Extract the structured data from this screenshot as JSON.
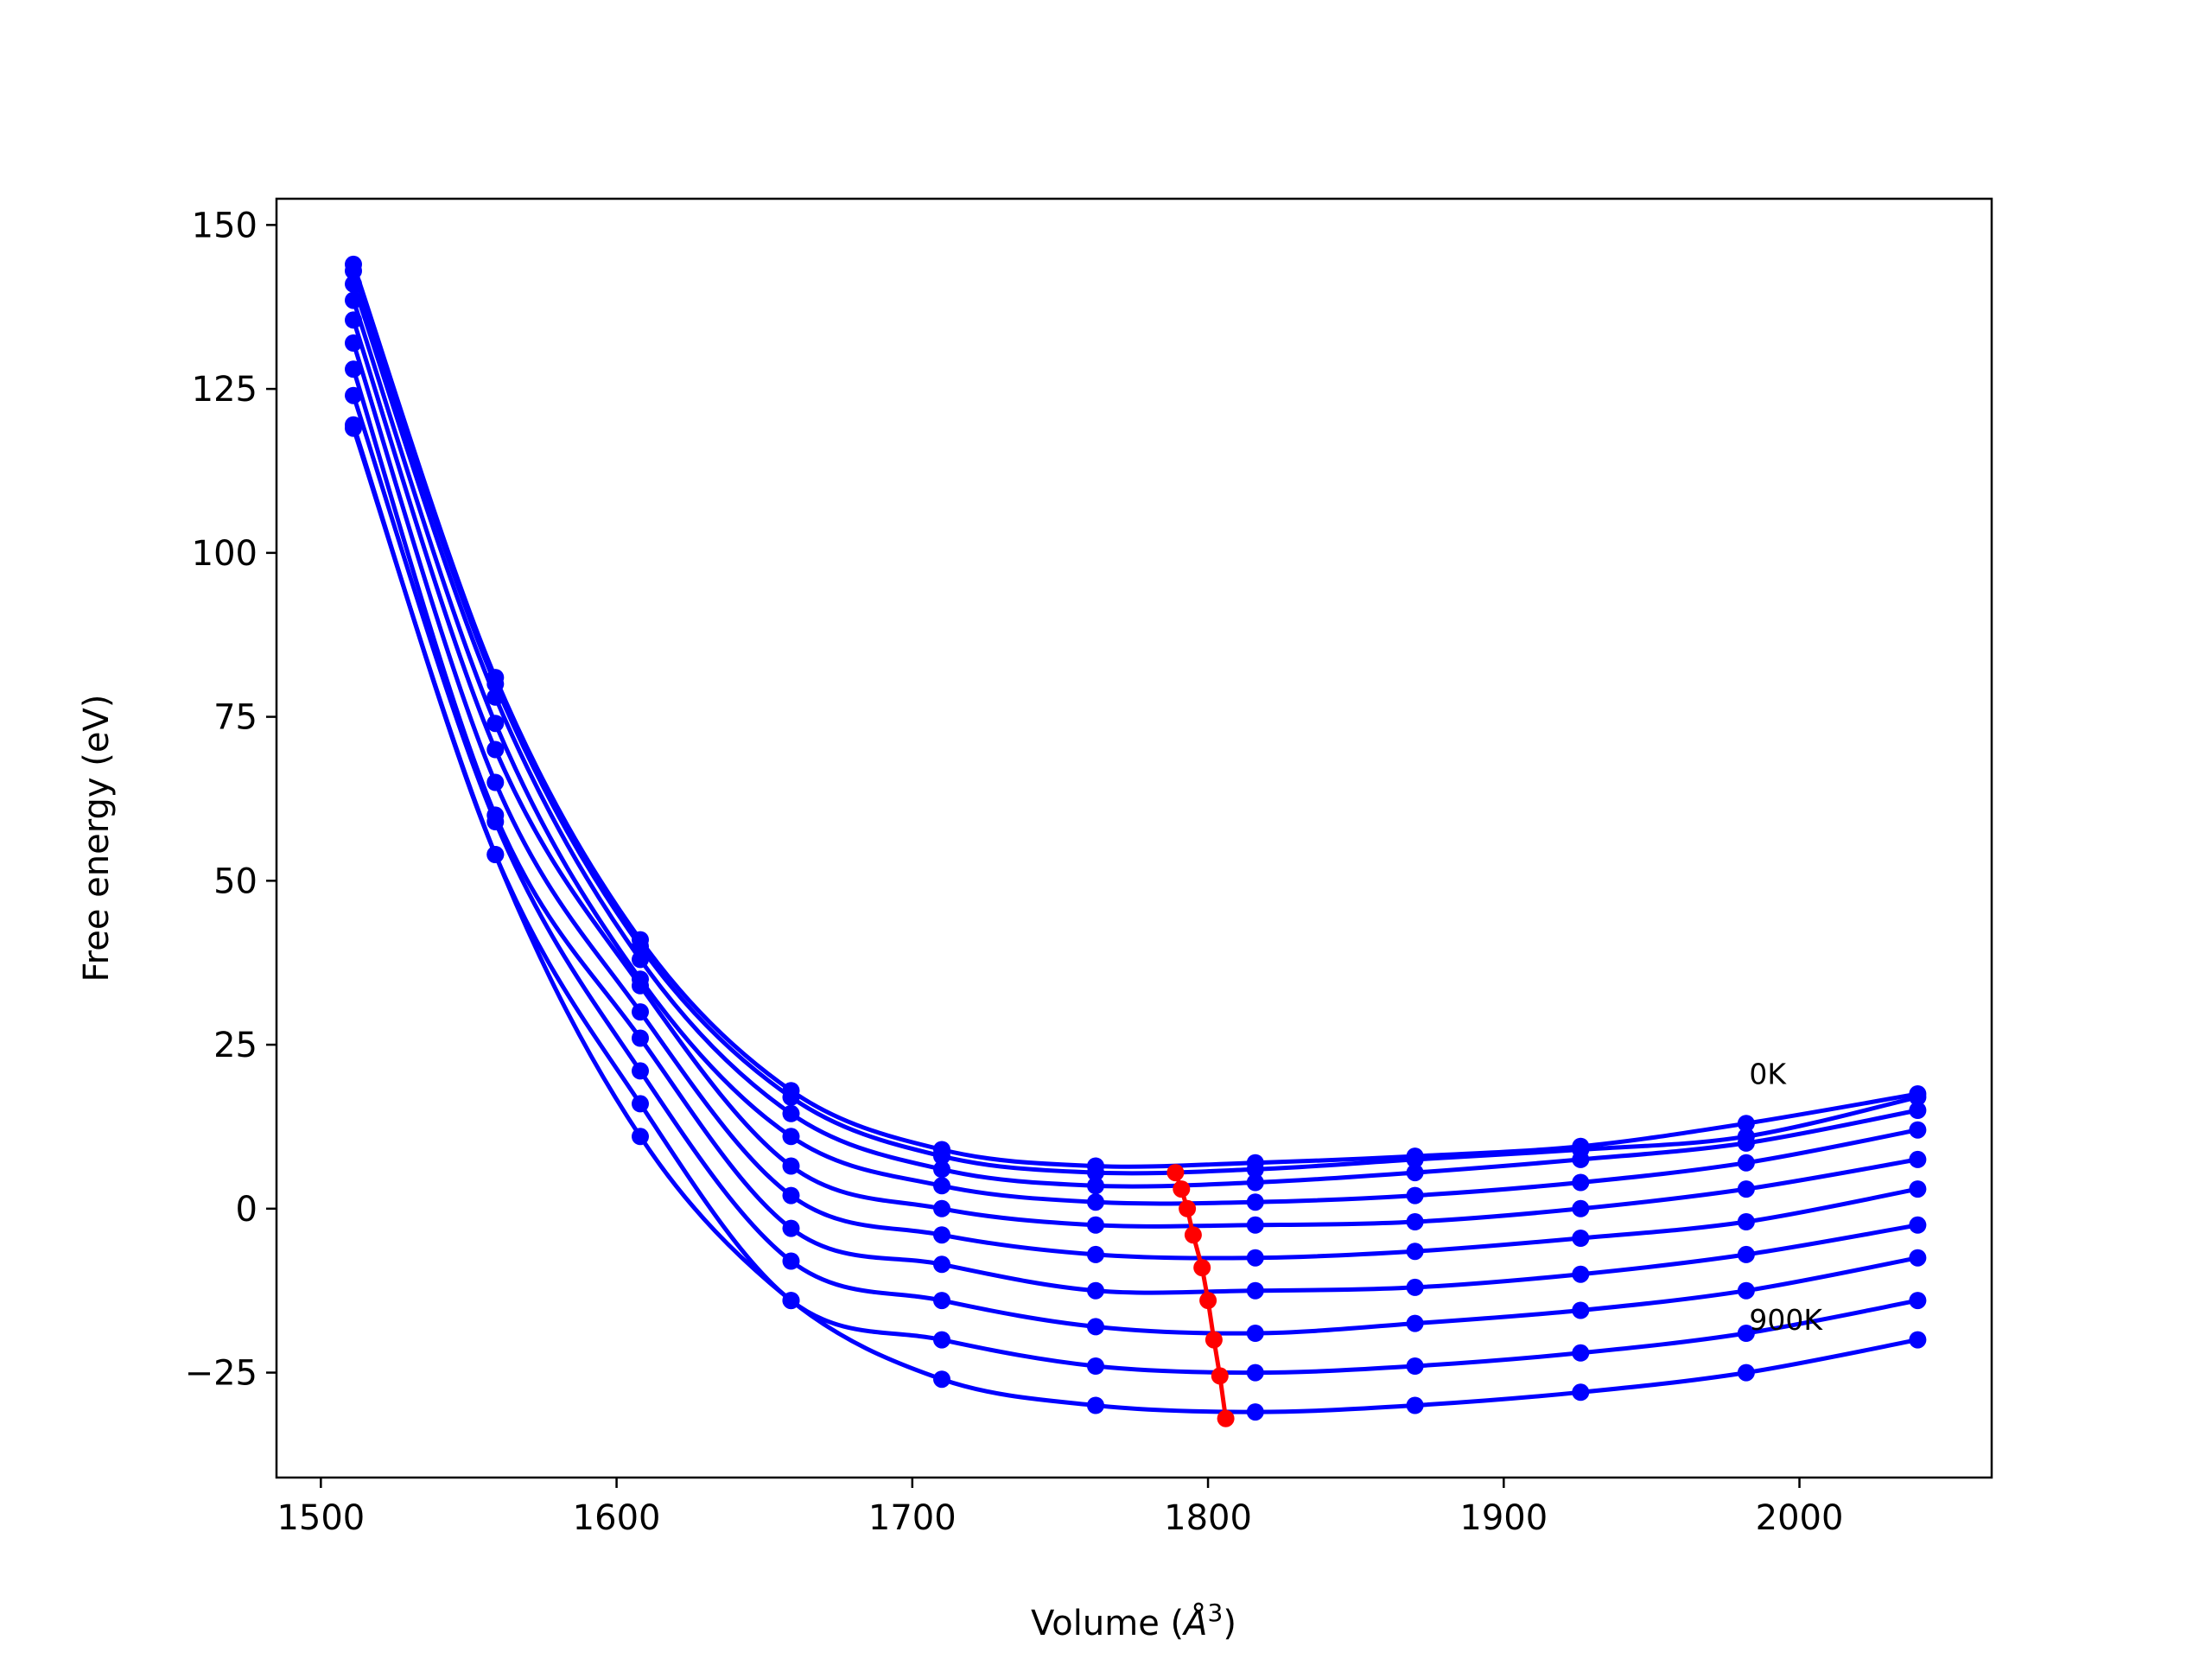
{
  "chart_data": {
    "type": "line",
    "title": "",
    "xlabel_parts": {
      "pre": "Volume (",
      "unit": "Å",
      "exp": "3",
      "post": ")"
    },
    "ylabel": "Free energy (eV)",
    "xlim": [
      1485,
      2065
    ],
    "ylim": [
      -41,
      154
    ],
    "xticks": [
      1500,
      1600,
      1700,
      1800,
      1900,
      2000
    ],
    "yticks": [
      -25,
      0,
      25,
      50,
      75,
      100,
      125,
      150
    ],
    "ytick_labels": [
      "−25",
      "0",
      "25",
      "50",
      "75",
      "100",
      "125",
      "150"
    ],
    "grid": false,
    "legend": "none",
    "x_points": [
      1511,
      1559,
      1608,
      1659,
      1710,
      1762,
      1816,
      1870,
      1926,
      1982,
      2040
    ],
    "temperature_series": [
      {
        "y": [
          144,
          81,
          41,
          18,
          9,
          6.5,
          7,
          8,
          9.5,
          13,
          17.5
        ]
      },
      {
        "y": [
          143,
          80,
          40,
          17,
          8,
          5.5,
          6,
          7.5,
          9,
          11,
          17
        ]
      },
      {
        "y": [
          141,
          78,
          38,
          14.5,
          6,
          3.5,
          4,
          5.5,
          7.5,
          10,
          15
        ]
      },
      {
        "y": [
          138.5,
          74,
          35,
          11,
          3.5,
          1,
          1,
          2,
          4,
          7,
          12
        ]
      },
      {
        "y": [
          135.5,
          70,
          34,
          6.5,
          0,
          -2.5,
          -2.5,
          -2,
          0,
          3,
          7.5
        ]
      },
      {
        "y": [
          132,
          65,
          30,
          2,
          -4,
          -7,
          -7.5,
          -6.5,
          -4.5,
          -2,
          3
        ]
      },
      {
        "y": [
          128,
          60,
          26,
          -3,
          -8.5,
          -12.5,
          -12.5,
          -12,
          -10,
          -7,
          -2.5
        ]
      },
      {
        "y": [
          124,
          59,
          21,
          -8,
          -14,
          -18,
          -19,
          -17.5,
          -15.5,
          -12.5,
          -7.5
        ]
      },
      {
        "y": [
          119.5,
          54,
          16,
          -14,
          -20,
          -24,
          -25,
          -24,
          -22,
          -19,
          -14
        ]
      },
      {
        "y": [
          119,
          54,
          11,
          -14,
          -26,
          -30,
          -31,
          -30,
          -28,
          -25,
          -20
        ]
      }
    ],
    "minimum_line": {
      "x": [
        1789,
        1791,
        1793,
        1795,
        1798,
        1800,
        1802,
        1804,
        1806
      ],
      "y": [
        5.5,
        3,
        0,
        -4,
        -9,
        -14,
        -20,
        -25.5,
        -32
      ]
    },
    "annotations": [
      {
        "text": "0K",
        "x": 1983,
        "y": 19
      },
      {
        "text": "900K",
        "x": 1983,
        "y": -18.5
      }
    ],
    "colors": {
      "series": "#0000ff",
      "minimum": "#ff0000",
      "axes": "#000000"
    }
  }
}
